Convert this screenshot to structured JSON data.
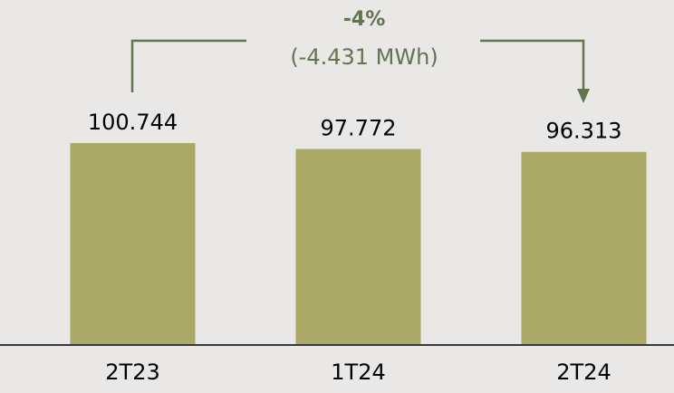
{
  "chart_data": {
    "type": "bar",
    "categories": [
      "2T23",
      "1T24",
      "2T24"
    ],
    "values": [
      100.744,
      97.772,
      96.313
    ],
    "color": "#aaa967",
    "annotation": {
      "change": "-4%",
      "detail": "(-4.431 MWh)",
      "color": "#637550"
    }
  }
}
